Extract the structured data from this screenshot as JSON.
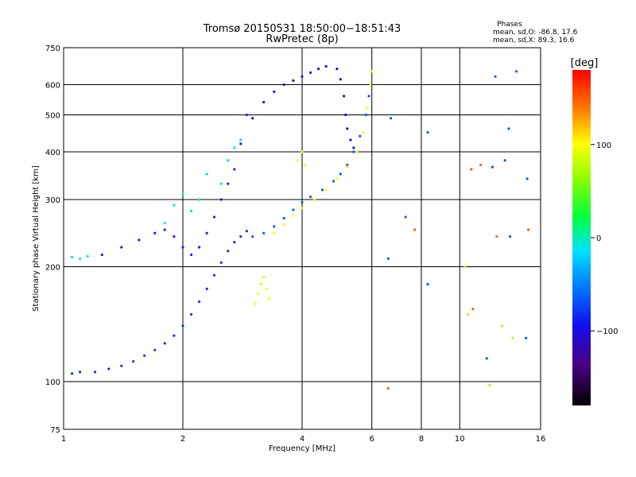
{
  "chart_data": {
    "type": "scatter",
    "title": "Tromsø 20150531 18:50:00−18:51:43",
    "subtitle": "RwPretec (8p)",
    "xlabel": "Frequency [MHz]",
    "ylabel": "Stationary phase Virtual Height [km]",
    "x_scale": "log",
    "y_scale": "log",
    "xlim": [
      1,
      16
    ],
    "ylim": [
      75,
      750
    ],
    "x_ticks": [
      1,
      2,
      4,
      6,
      8,
      10,
      16
    ],
    "y_ticks": [
      75,
      100,
      200,
      300,
      400,
      500,
      600,
      750
    ],
    "grid": true,
    "stats": {
      "title": "Phases",
      "line_o": "mean, sd,O: -86.8, 17.6",
      "line_x": "mean, sd,X:  89.3, 16.6"
    },
    "colorbar": {
      "label": "[deg]",
      "range": [
        -180,
        180
      ],
      "ticks": [
        100,
        0,
        -100
      ],
      "tick_labels": [
        "100",
        "0",
        "−100"
      ]
    },
    "traces": [
      {
        "name": "",
        "phase": -110,
        "points": [
          [
            1.05,
            105
          ],
          [
            1.1,
            106
          ],
          [
            1.2,
            106
          ],
          [
            1.3,
            108
          ],
          [
            1.4,
            110
          ],
          [
            1.5,
            113
          ],
          [
            1.6,
            117
          ],
          [
            1.7,
            121
          ],
          [
            1.8,
            126
          ],
          [
            1.9,
            132
          ],
          [
            2.0,
            140
          ],
          [
            2.1,
            150
          ],
          [
            2.2,
            162
          ],
          [
            2.3,
            175
          ],
          [
            2.4,
            190
          ],
          [
            2.5,
            205
          ],
          [
            2.6,
            220
          ],
          [
            2.7,
            232
          ],
          [
            2.8,
            240
          ],
          [
            2.9,
            248
          ]
        ]
      },
      {
        "name": "",
        "phase": -115,
        "points": [
          [
            1.25,
            215
          ],
          [
            1.4,
            225
          ],
          [
            1.55,
            235
          ],
          [
            1.7,
            245
          ],
          [
            1.8,
            250
          ],
          [
            1.9,
            240
          ],
          [
            2.0,
            225
          ],
          [
            2.1,
            215
          ],
          [
            2.2,
            225
          ],
          [
            2.3,
            245
          ],
          [
            2.4,
            270
          ],
          [
            2.5,
            300
          ],
          [
            2.6,
            330
          ],
          [
            2.7,
            360
          ],
          [
            2.8,
            420
          ],
          [
            2.9,
            500
          ]
        ]
      },
      {
        "name": "",
        "phase": -100,
        "points": [
          [
            3.0,
            240
          ],
          [
            3.2,
            245
          ],
          [
            3.4,
            255
          ],
          [
            3.6,
            268
          ],
          [
            3.8,
            282
          ],
          [
            4.0,
            295
          ],
          [
            4.2,
            305
          ],
          [
            4.5,
            318
          ],
          [
            4.8,
            335
          ],
          [
            5.0,
            350
          ],
          [
            5.2,
            370
          ],
          [
            5.4,
            400
          ],
          [
            5.6,
            440
          ],
          [
            5.8,
            500
          ],
          [
            5.9,
            560
          ]
        ]
      },
      {
        "name": "",
        "phase": -120,
        "points": [
          [
            3.0,
            490
          ],
          [
            3.2,
            540
          ],
          [
            3.4,
            575
          ],
          [
            3.6,
            600
          ],
          [
            3.8,
            615
          ],
          [
            4.0,
            630
          ],
          [
            4.2,
            645
          ],
          [
            4.4,
            660
          ],
          [
            4.6,
            670
          ]
        ]
      },
      {
        "name": "",
        "phase": -125,
        "points": [
          [
            4.9,
            660
          ],
          [
            5.0,
            620
          ],
          [
            5.1,
            560
          ],
          [
            5.15,
            500
          ],
          [
            5.2,
            460
          ],
          [
            5.3,
            430
          ],
          [
            5.4,
            410
          ]
        ]
      },
      {
        "name": "",
        "phase": 95,
        "points": [
          [
            3.4,
            245
          ],
          [
            3.6,
            258
          ],
          [
            3.8,
            272
          ],
          [
            4.0,
            285
          ],
          [
            4.3,
            300
          ],
          [
            4.6,
            318
          ],
          [
            4.9,
            340
          ],
          [
            5.2,
            365
          ],
          [
            5.5,
            400
          ],
          [
            5.7,
            450
          ],
          [
            5.85,
            520
          ],
          [
            5.95,
            600
          ],
          [
            6.0,
            650
          ]
        ]
      },
      {
        "name": "",
        "phase": 90,
        "points": [
          [
            3.05,
            160
          ],
          [
            3.1,
            170
          ],
          [
            3.15,
            180
          ],
          [
            3.2,
            188
          ],
          [
            3.25,
            175
          ],
          [
            3.3,
            165
          ],
          [
            3.9,
            380
          ],
          [
            4.0,
            400
          ],
          [
            4.05,
            370
          ]
        ]
      },
      {
        "name": "",
        "phase": -40,
        "points": [
          [
            1.05,
            212
          ],
          [
            1.1,
            210
          ],
          [
            1.15,
            213
          ],
          [
            1.8,
            260
          ],
          [
            1.9,
            290
          ],
          [
            2.0,
            310
          ],
          [
            2.1,
            280
          ],
          [
            2.2,
            300
          ],
          [
            2.3,
            350
          ],
          [
            2.5,
            330
          ],
          [
            2.6,
            380
          ],
          [
            2.7,
            410
          ],
          [
            2.8,
            430
          ]
        ]
      },
      {
        "name": "",
        "phase": -100,
        "points": [
          [
            7.3,
            270
          ],
          [
            8.3,
            450
          ],
          [
            6.6,
            210
          ],
          [
            11.7,
            115
          ],
          [
            12.3,
            630
          ],
          [
            13.9,
            650
          ],
          [
            13.0,
            380
          ],
          [
            12.1,
            365
          ],
          [
            13.3,
            460
          ],
          [
            14.8,
            340
          ],
          [
            14.7,
            130
          ],
          [
            13.4,
            240
          ],
          [
            8.3,
            180
          ],
          [
            6.7,
            490
          ]
        ]
      },
      {
        "name": "",
        "phase": 150,
        "points": [
          [
            6.6,
            96
          ],
          [
            10.8,
            155
          ],
          [
            11.3,
            370
          ],
          [
            10.7,
            360
          ],
          [
            12.4,
            240
          ],
          [
            14.9,
            250
          ],
          [
            7.7,
            250
          ]
        ]
      },
      {
        "name": "",
        "phase": 60,
        "points": [
          [
            10.3,
            200
          ],
          [
            10.5,
            150
          ],
          [
            12.8,
            140
          ],
          [
            13.6,
            130
          ],
          [
            11.9,
            98
          ]
        ]
      }
    ]
  }
}
